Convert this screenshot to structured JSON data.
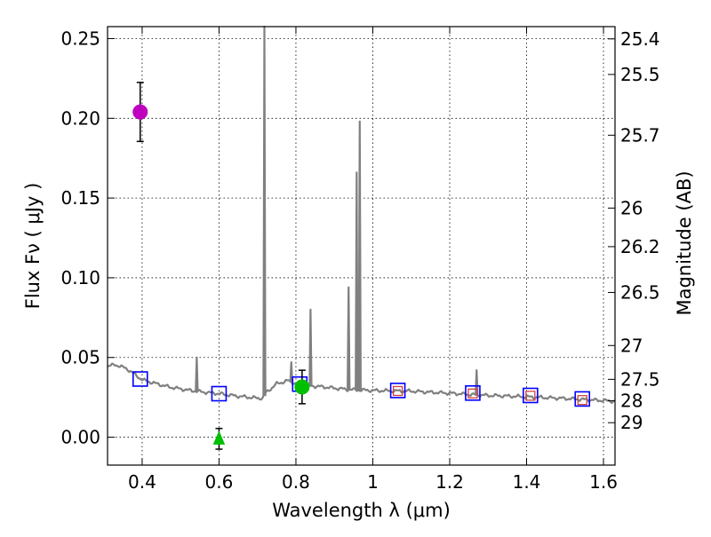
{
  "chart_data": {
    "type": "scatter",
    "xlabel": "Wavelength  λ (μm)",
    "ylabel": "Flux  Fν  ( μJy )",
    "ylabel_right": "Magnitude (AB)",
    "xlim": [
      0.31,
      1.63
    ],
    "ylim": [
      -0.0175,
      0.2575
    ],
    "grid": true,
    "x_ticks": [
      0.4,
      0.6,
      0.8,
      1.0,
      1.2,
      1.4,
      1.6
    ],
    "x_tick_labels": [
      "0.4",
      "0.6",
      "0.8",
      "1",
      "1.2",
      "1.4",
      "1.6"
    ],
    "y_ticks": [
      0.0,
      0.05,
      0.1,
      0.15,
      0.2,
      0.25
    ],
    "y_tick_labels": [
      "0.00",
      "0.05",
      "0.10",
      "0.15",
      "0.20",
      "0.25"
    ],
    "right_ticks": [
      {
        "label": "25.4",
        "flux": 0.2498
      },
      {
        "label": "25.5",
        "flux": 0.2275
      },
      {
        "label": "25.7",
        "flux": 0.1894
      },
      {
        "label": "26",
        "flux": 0.1437
      },
      {
        "label": "26.2",
        "flux": 0.1195
      },
      {
        "label": "26.5",
        "flux": 0.0908
      },
      {
        "label": "27",
        "flux": 0.0575
      },
      {
        "label": "27.5",
        "flux": 0.0363
      },
      {
        "label": "28",
        "flux": 0.0229
      },
      {
        "label": "29",
        "flux": 0.0091
      }
    ],
    "model_spectrum": {
      "name": "model SED",
      "color": "#808080",
      "continuum": [
        [
          0.31,
          0.0445
        ],
        [
          0.33,
          0.0455
        ],
        [
          0.36,
          0.043
        ],
        [
          0.4,
          0.036
        ],
        [
          0.43,
          0.034
        ],
        [
          0.47,
          0.0315
        ],
        [
          0.52,
          0.0295
        ],
        [
          0.56,
          0.0283
        ],
        [
          0.6,
          0.0273
        ],
        [
          0.65,
          0.0257
        ],
        [
          0.7,
          0.0245
        ],
        [
          0.715,
          0.0245
        ],
        [
          0.72,
          0.0275
        ],
        [
          0.75,
          0.0335
        ],
        [
          0.78,
          0.0355
        ],
        [
          0.8,
          0.0335
        ],
        [
          0.82,
          0.0325
        ],
        [
          0.86,
          0.0318
        ],
        [
          0.9,
          0.0308
        ],
        [
          0.94,
          0.0298
        ],
        [
          1.0,
          0.0293
        ],
        [
          1.06,
          0.029
        ],
        [
          1.1,
          0.0289
        ],
        [
          1.15,
          0.0282
        ],
        [
          1.2,
          0.0276
        ],
        [
          1.25,
          0.0268
        ],
        [
          1.3,
          0.0262
        ],
        [
          1.35,
          0.0258
        ],
        [
          1.4,
          0.0253
        ],
        [
          1.45,
          0.0248
        ],
        [
          1.5,
          0.0243
        ],
        [
          1.55,
          0.0236
        ],
        [
          1.6,
          0.023
        ],
        [
          1.63,
          0.0225
        ]
      ],
      "emission_lines": [
        {
          "wavelength": 0.542,
          "peak": 0.05
        },
        {
          "wavelength": 0.718,
          "peak": 0.2575
        },
        {
          "wavelength": 0.788,
          "peak": 0.047
        },
        {
          "wavelength": 0.838,
          "peak": 0.08
        },
        {
          "wavelength": 0.937,
          "peak": 0.094
        },
        {
          "wavelength": 0.958,
          "peak": 0.166
        },
        {
          "wavelength": 0.966,
          "peak": 0.198
        },
        {
          "wavelength": 1.27,
          "peak": 0.042
        }
      ]
    },
    "observed": [
      {
        "name": "magenta point",
        "shape": "circle",
        "color": "#bf00bf",
        "x": 0.395,
        "y": 0.204,
        "err": 0.0185
      },
      {
        "name": "green triangle",
        "shape": "triangle",
        "color": "#00bf00",
        "x": 0.6,
        "y": -0.001,
        "err": 0.0065
      },
      {
        "name": "green point",
        "shape": "circle",
        "color": "#00bf00",
        "x": 0.816,
        "y": 0.0315,
        "err": 0.0105
      }
    ],
    "model_photometry_blue": {
      "name": "model photometry",
      "shape": "square",
      "color": "#0000ff",
      "x": [
        0.395,
        0.6,
        0.81,
        1.065,
        1.26,
        1.41,
        1.545
      ],
      "y": [
        0.0365,
        0.0273,
        0.0333,
        0.0293,
        0.0277,
        0.0262,
        0.024
      ]
    },
    "model_photometry_red": {
      "name": "model photometry (red)",
      "shape": "square",
      "color": "#d04040",
      "x": [
        1.065,
        1.26,
        1.41,
        1.545
      ],
      "y": [
        0.029,
        0.0274,
        0.026,
        0.0233
      ]
    }
  }
}
